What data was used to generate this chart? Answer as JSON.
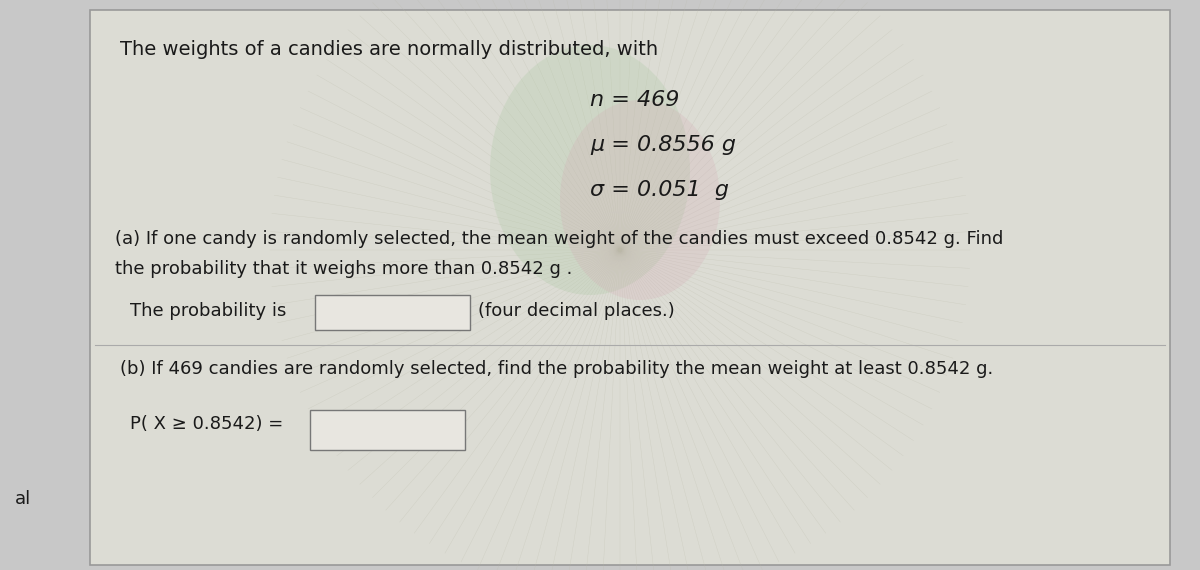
{
  "bg_color": "#c8c8c8",
  "panel_color": "#d8d8d0",
  "title": "The weights of a candies are normally distributed, with",
  "line1": "n = 469",
  "line2": "μ = 0.8556 g",
  "line3": "σ = 0.051  g",
  "part_a_line1": "(a) If one candy is randomly selected, the mean weight of the candies must exceed 0.8542 g. Find",
  "part_a_line2": "the probability that it weighs more than 0.8542 g .",
  "part_a_answer_label": "The probability is",
  "part_a_answer_hint": "(four decimal places.)",
  "part_b_text": "(b) If 469 candies are randomly selected, find the probability the mean weight at least 0.8542 g.",
  "part_b_label": "P( X ≥ 0.8542) =",
  "footer_label": "al",
  "font_size_title": 14,
  "font_size_body": 13,
  "font_size_math": 14,
  "text_color": "#1a1a1a",
  "box_facecolor": "#e8e6e0",
  "box_edgecolor": "#777777",
  "separator_color": "#aaaaaa"
}
